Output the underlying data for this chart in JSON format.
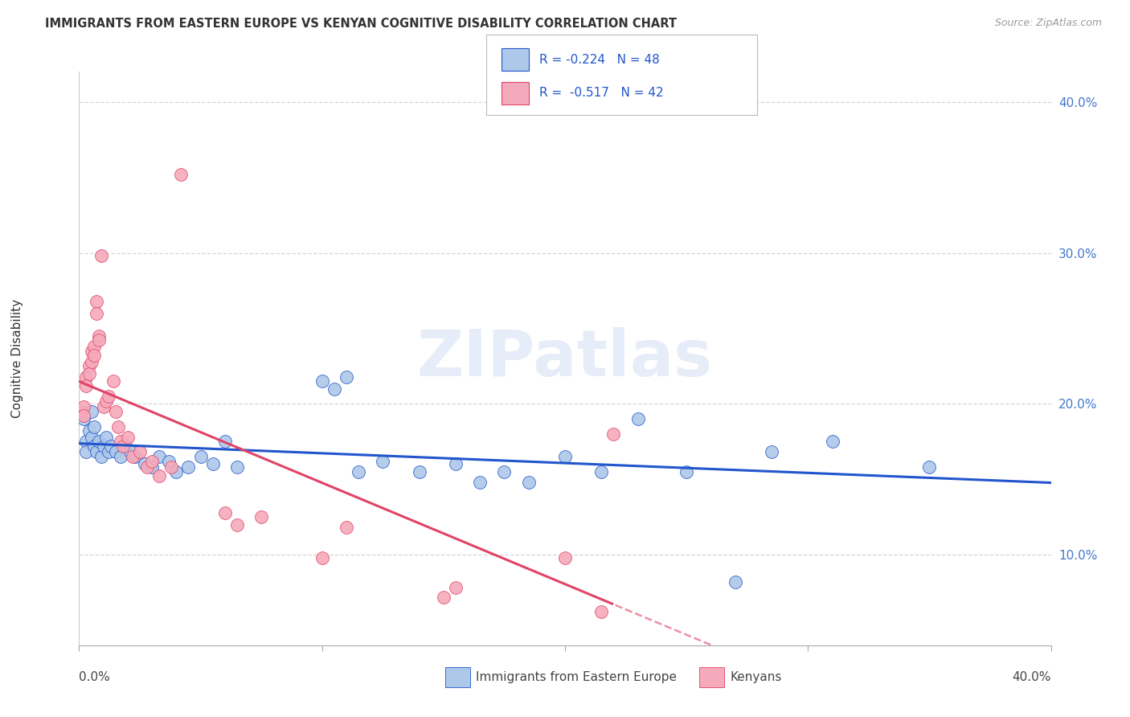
{
  "title": "IMMIGRANTS FROM EASTERN EUROPE VS KENYAN COGNITIVE DISABILITY CORRELATION CHART",
  "source": "Source: ZipAtlas.com",
  "ylabel": "Cognitive Disability",
  "blue_label": "Immigrants from Eastern Europe",
  "pink_label": "Kenyans",
  "blue_R": -0.224,
  "blue_N": 48,
  "pink_R": -0.517,
  "pink_N": 42,
  "blue_color": "#adc8e8",
  "pink_color": "#f5aabb",
  "blue_line_color": "#2255cc",
  "pink_line_color": "#e04468",
  "blue_scatter_x": [
    0.002,
    0.003,
    0.003,
    0.004,
    0.005,
    0.005,
    0.006,
    0.006,
    0.007,
    0.008,
    0.009,
    0.01,
    0.011,
    0.012,
    0.013,
    0.015,
    0.017,
    0.019,
    0.021,
    0.023,
    0.027,
    0.03,
    0.033,
    0.037,
    0.04,
    0.045,
    0.05,
    0.055,
    0.06,
    0.065,
    0.1,
    0.105,
    0.11,
    0.115,
    0.125,
    0.14,
    0.155,
    0.165,
    0.175,
    0.185,
    0.2,
    0.215,
    0.23,
    0.25,
    0.27,
    0.285,
    0.31,
    0.35
  ],
  "blue_scatter_y": [
    0.19,
    0.175,
    0.168,
    0.182,
    0.195,
    0.178,
    0.185,
    0.172,
    0.168,
    0.175,
    0.165,
    0.172,
    0.178,
    0.168,
    0.172,
    0.168,
    0.165,
    0.172,
    0.168,
    0.165,
    0.16,
    0.158,
    0.165,
    0.162,
    0.155,
    0.158,
    0.165,
    0.16,
    0.175,
    0.158,
    0.215,
    0.21,
    0.218,
    0.155,
    0.162,
    0.155,
    0.16,
    0.148,
    0.155,
    0.148,
    0.165,
    0.155,
    0.19,
    0.155,
    0.082,
    0.168,
    0.175,
    0.158
  ],
  "pink_scatter_x": [
    0.001,
    0.002,
    0.002,
    0.003,
    0.003,
    0.004,
    0.004,
    0.005,
    0.005,
    0.006,
    0.006,
    0.007,
    0.007,
    0.008,
    0.008,
    0.009,
    0.01,
    0.011,
    0.012,
    0.014,
    0.015,
    0.016,
    0.017,
    0.018,
    0.02,
    0.022,
    0.025,
    0.028,
    0.03,
    0.033,
    0.038,
    0.042,
    0.06,
    0.065,
    0.075,
    0.1,
    0.11,
    0.15,
    0.155,
    0.2,
    0.215,
    0.22
  ],
  "pink_scatter_y": [
    0.195,
    0.198,
    0.192,
    0.218,
    0.212,
    0.225,
    0.22,
    0.235,
    0.228,
    0.238,
    0.232,
    0.268,
    0.26,
    0.245,
    0.242,
    0.298,
    0.198,
    0.202,
    0.205,
    0.215,
    0.195,
    0.185,
    0.175,
    0.172,
    0.178,
    0.165,
    0.168,
    0.158,
    0.162,
    0.152,
    0.158,
    0.352,
    0.128,
    0.12,
    0.125,
    0.098,
    0.118,
    0.072,
    0.078,
    0.098,
    0.062,
    0.18
  ],
  "xlim": [
    0.0,
    0.4
  ],
  "ylim": [
    0.04,
    0.42
  ],
  "yticks": [
    0.1,
    0.2,
    0.3,
    0.4
  ],
  "ytick_labels": [
    "10.0%",
    "20.0%",
    "30.0%",
    "40.0%"
  ],
  "xtick_positions": [
    0.0,
    0.1,
    0.2,
    0.3,
    0.4
  ],
  "watermark": "ZIPatlas",
  "watermark_color": "#c8d8f0",
  "background": "#ffffff",
  "grid_color": "#cccccc",
  "tick_color": "#aaaaaa",
  "right_label_color": "#4477cc",
  "title_color": "#333333",
  "source_color": "#999999"
}
